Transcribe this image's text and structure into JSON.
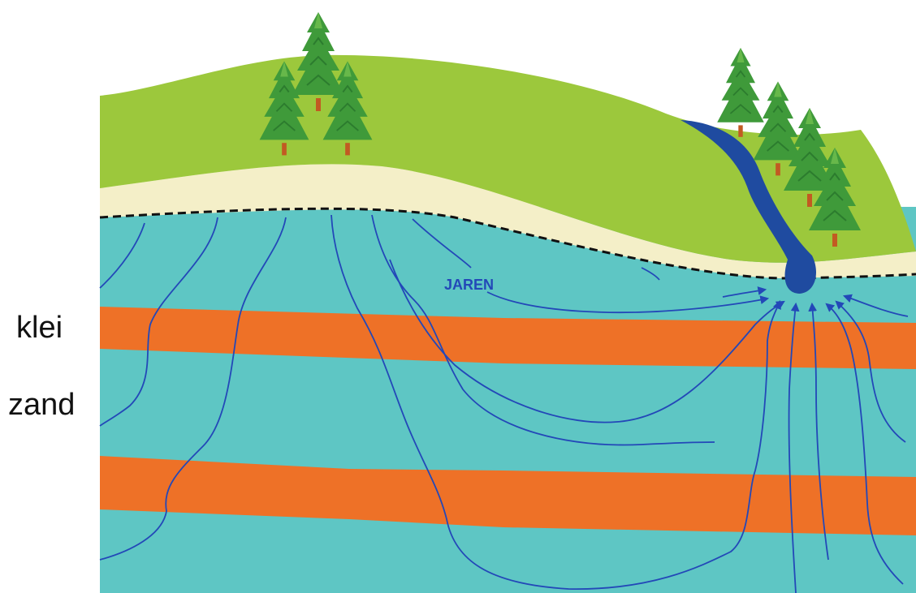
{
  "labels": {
    "layer_1": "klei",
    "layer_2": "zand",
    "flow_time": "JAREN"
  },
  "colors": {
    "hill_grass": "#9cc83c",
    "sand_layer": "#f4efc8",
    "groundwater": "#5ec6c4",
    "clay_layer": "#ee7127",
    "stream": "#1f4ba0",
    "flow_lines": "#2348b8",
    "water_table_line": "#111111",
    "tree_foliage": "#3f9a3a",
    "tree_trunk": "#c25a22"
  }
}
